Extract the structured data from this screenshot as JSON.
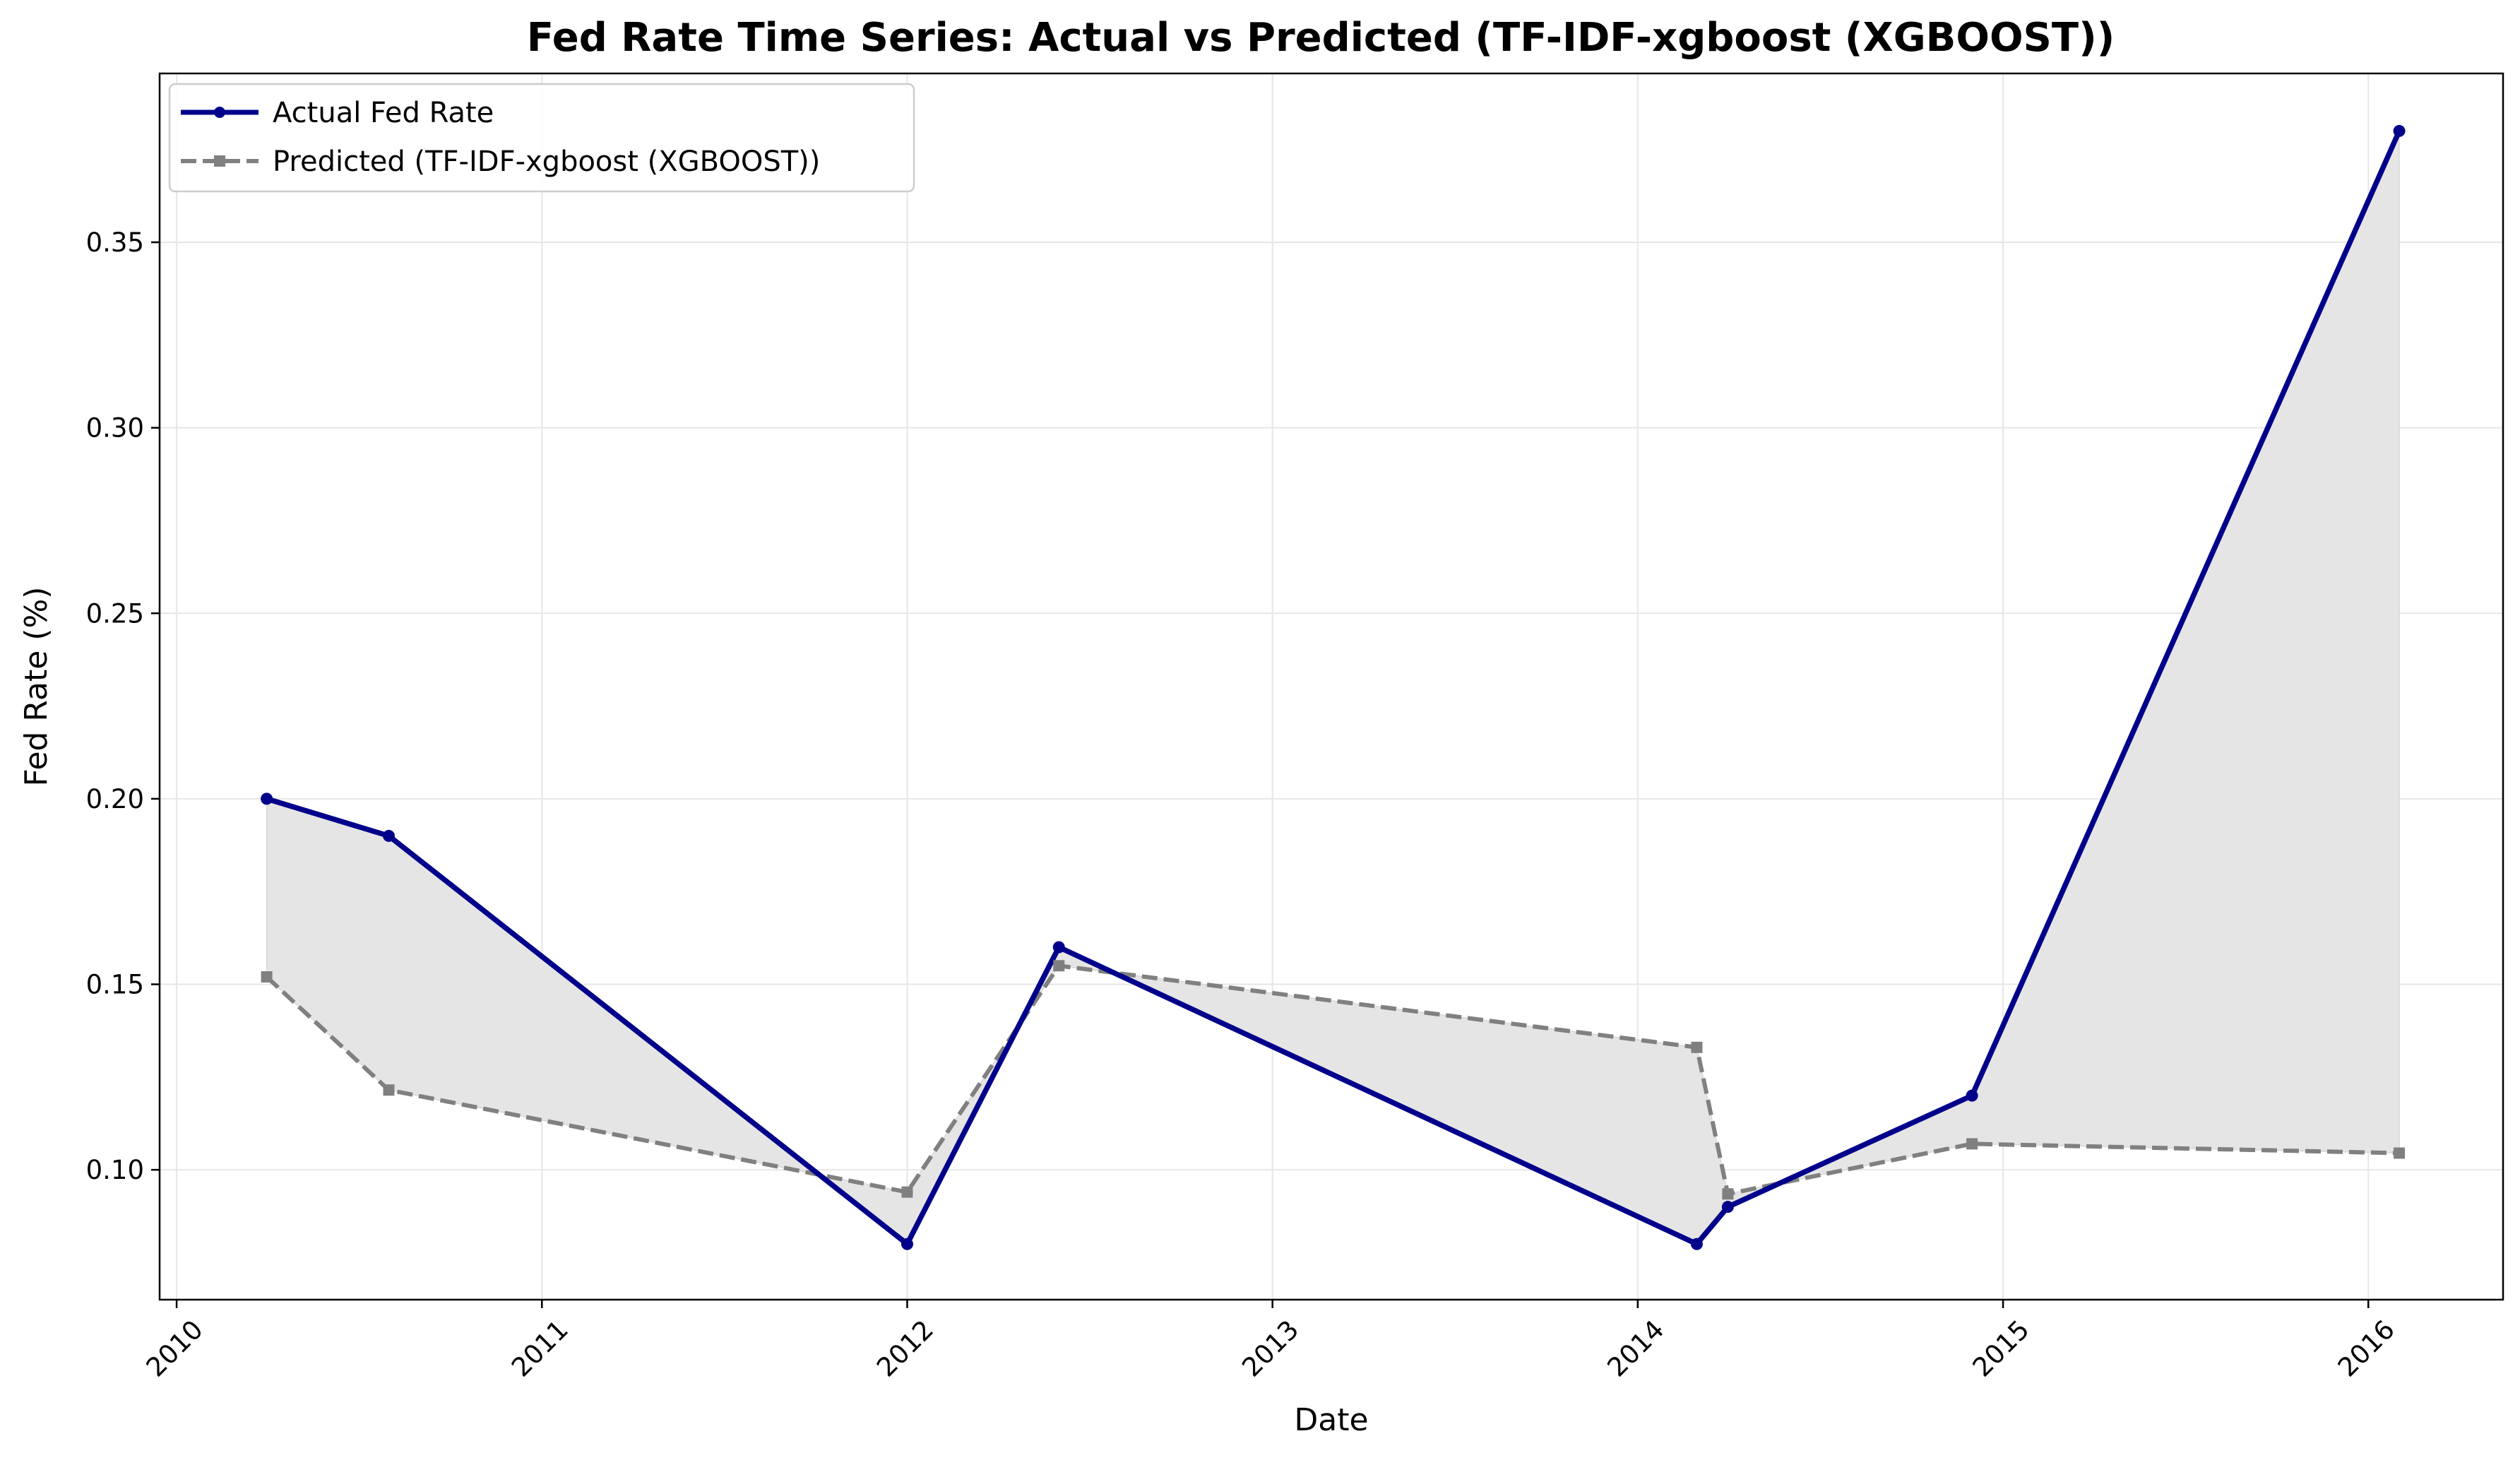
{
  "chart_data": {
    "type": "line",
    "title": "Fed Rate Time Series: Actual vs Predicted (TF-IDF-xgboost (XGBOOST))",
    "xlabel": "Date",
    "ylabel": "Fed Rate (%)",
    "x_ticks": [
      "2010",
      "2011",
      "2012",
      "2013",
      "2014",
      "2015",
      "2016"
    ],
    "y_ticks": [
      "0.10",
      "0.15",
      "0.20",
      "0.25",
      "0.30",
      "0.35"
    ],
    "xlim": [
      "2009-12-15",
      "2016-05-15"
    ],
    "ylim": [
      0.065,
      0.3955
    ],
    "grid": true,
    "legend_position": "top-left",
    "fill_between_series": true,
    "series": [
      {
        "name": "Actual Fed Rate",
        "color": "#00008b",
        "line_style": "solid",
        "marker": "circle",
        "points": [
          {
            "x": "2010-04-01",
            "y": 0.2
          },
          {
            "x": "2010-08-01",
            "y": 0.19
          },
          {
            "x": "2012-01-01",
            "y": 0.08
          },
          {
            "x": "2012-06-01",
            "y": 0.16
          },
          {
            "x": "2014-03-01",
            "y": 0.08
          },
          {
            "x": "2014-04-01",
            "y": 0.09
          },
          {
            "x": "2014-12-01",
            "y": 0.12
          },
          {
            "x": "2016-02-01",
            "y": 0.38
          }
        ]
      },
      {
        "name": "Predicted (TF-IDF-xgboost (XGBOOST))",
        "color": "#808080",
        "line_style": "dashed",
        "marker": "square",
        "points": [
          {
            "x": "2010-04-01",
            "y": 0.152
          },
          {
            "x": "2010-08-01",
            "y": 0.1215
          },
          {
            "x": "2012-01-01",
            "y": 0.094
          },
          {
            "x": "2012-06-01",
            "y": 0.155
          },
          {
            "x": "2014-03-01",
            "y": 0.133
          },
          {
            "x": "2014-04-01",
            "y": 0.0935
          },
          {
            "x": "2014-12-01",
            "y": 0.107
          },
          {
            "x": "2016-02-01",
            "y": 0.1045
          }
        ]
      }
    ],
    "colors": {
      "fill": "#e5e5e5",
      "fill_edge": "#c8c8c8",
      "grid": "#e6e6e6",
      "axes": "#000000",
      "legend_border": "#cccccc"
    }
  }
}
